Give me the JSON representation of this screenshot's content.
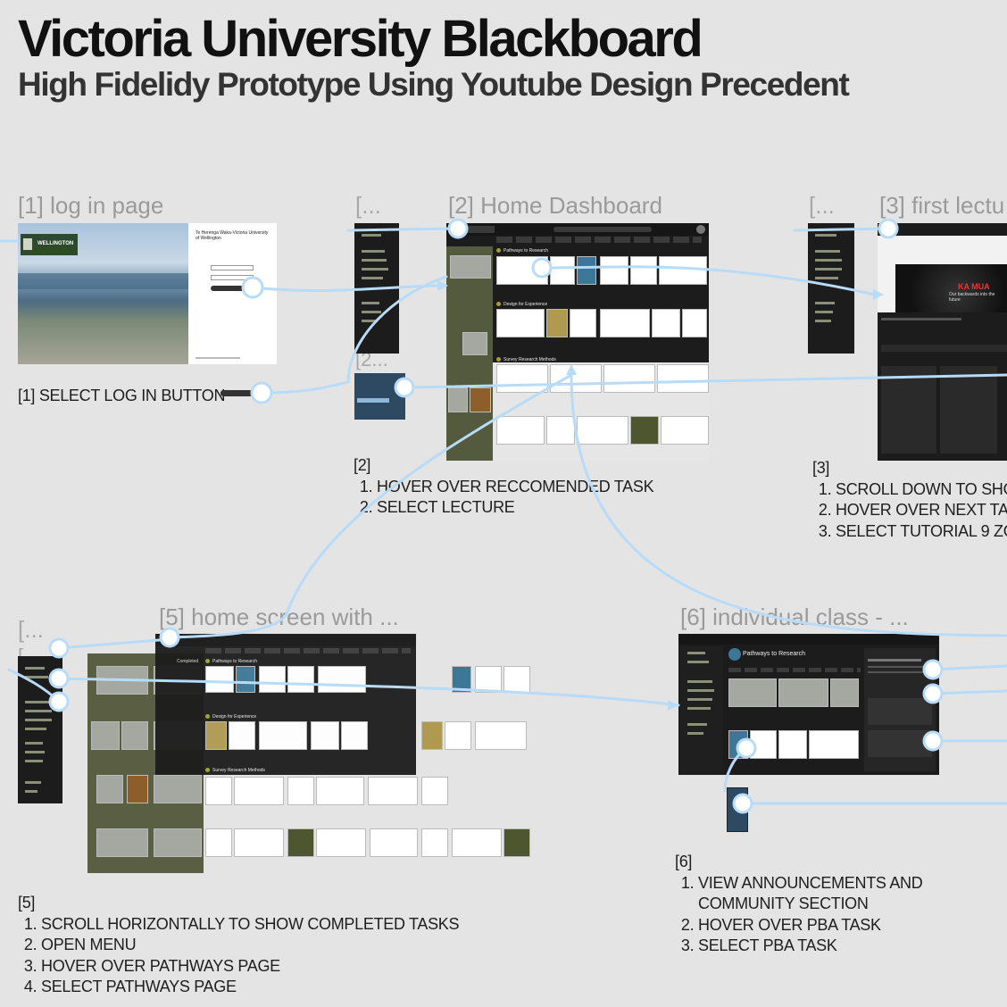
{
  "header": {
    "title": "Victoria University Blackboard",
    "subtitle": "High Fidelidy Prototype Using Youtube Design Precedent"
  },
  "frames": {
    "login": {
      "label": "[1] log in page",
      "brand": "WELLINGTON",
      "panel_title": "Te Herenga Waka-Victoria University of Wellington",
      "note": "[1] SELECT LOG IN BUTTON"
    },
    "dashboard": {
      "label": "[2] Home Dashboard",
      "sections": [
        "Pathways to Research",
        "Design for Experience",
        "Survey Research Methods"
      ],
      "note_heading": "[2]",
      "steps": [
        "HOVER OVER RECCOMENDED TASK",
        "SELECT LECTURE"
      ]
    },
    "lecture": {
      "label": "[3] first lectu",
      "overlay_text": "KA MUA",
      "overlay_sub": "Our backwards into the future",
      "note_heading": "[3]",
      "steps": [
        "SCROLL DOWN TO SHO",
        "HOVER OVER NEXT TAS",
        "SELECT TUTORIAL 9 ZO"
      ]
    },
    "home_completed": {
      "label": "[5] home screen with ...",
      "sections": [
        "Pathways to Research",
        "Design for Experience",
        "Survey Research Methods"
      ],
      "completed_label": "Completed",
      "note_heading": "[5]",
      "steps": [
        "SCROLL HORIZONTALLY TO SHOW COMPLETED TASKS",
        "OPEN MENU",
        "HOVER OVER PATHWAYS PAGE",
        "SELECT PATHWAYS PAGE"
      ]
    },
    "individual_class": {
      "label": "[6] individual class - ...",
      "class_title": "Pathways to Research",
      "note_heading": "[6]",
      "steps": [
        "VIEW ANNOUNCEMENTS AND COMMUNITY SECTION",
        "HOVER OVER PBA TASK",
        "SELECT PBA TASK"
      ]
    }
  },
  "collapsed": {
    "a": "[...",
    "b": "[2...",
    "c": "[...",
    "d": "[...",
    "e": "[..."
  },
  "colors": {
    "connector": "#b8dbf7",
    "background": "#e4e4e4",
    "dark_ui": "#1c1c1c",
    "olive": "#545a3e"
  }
}
